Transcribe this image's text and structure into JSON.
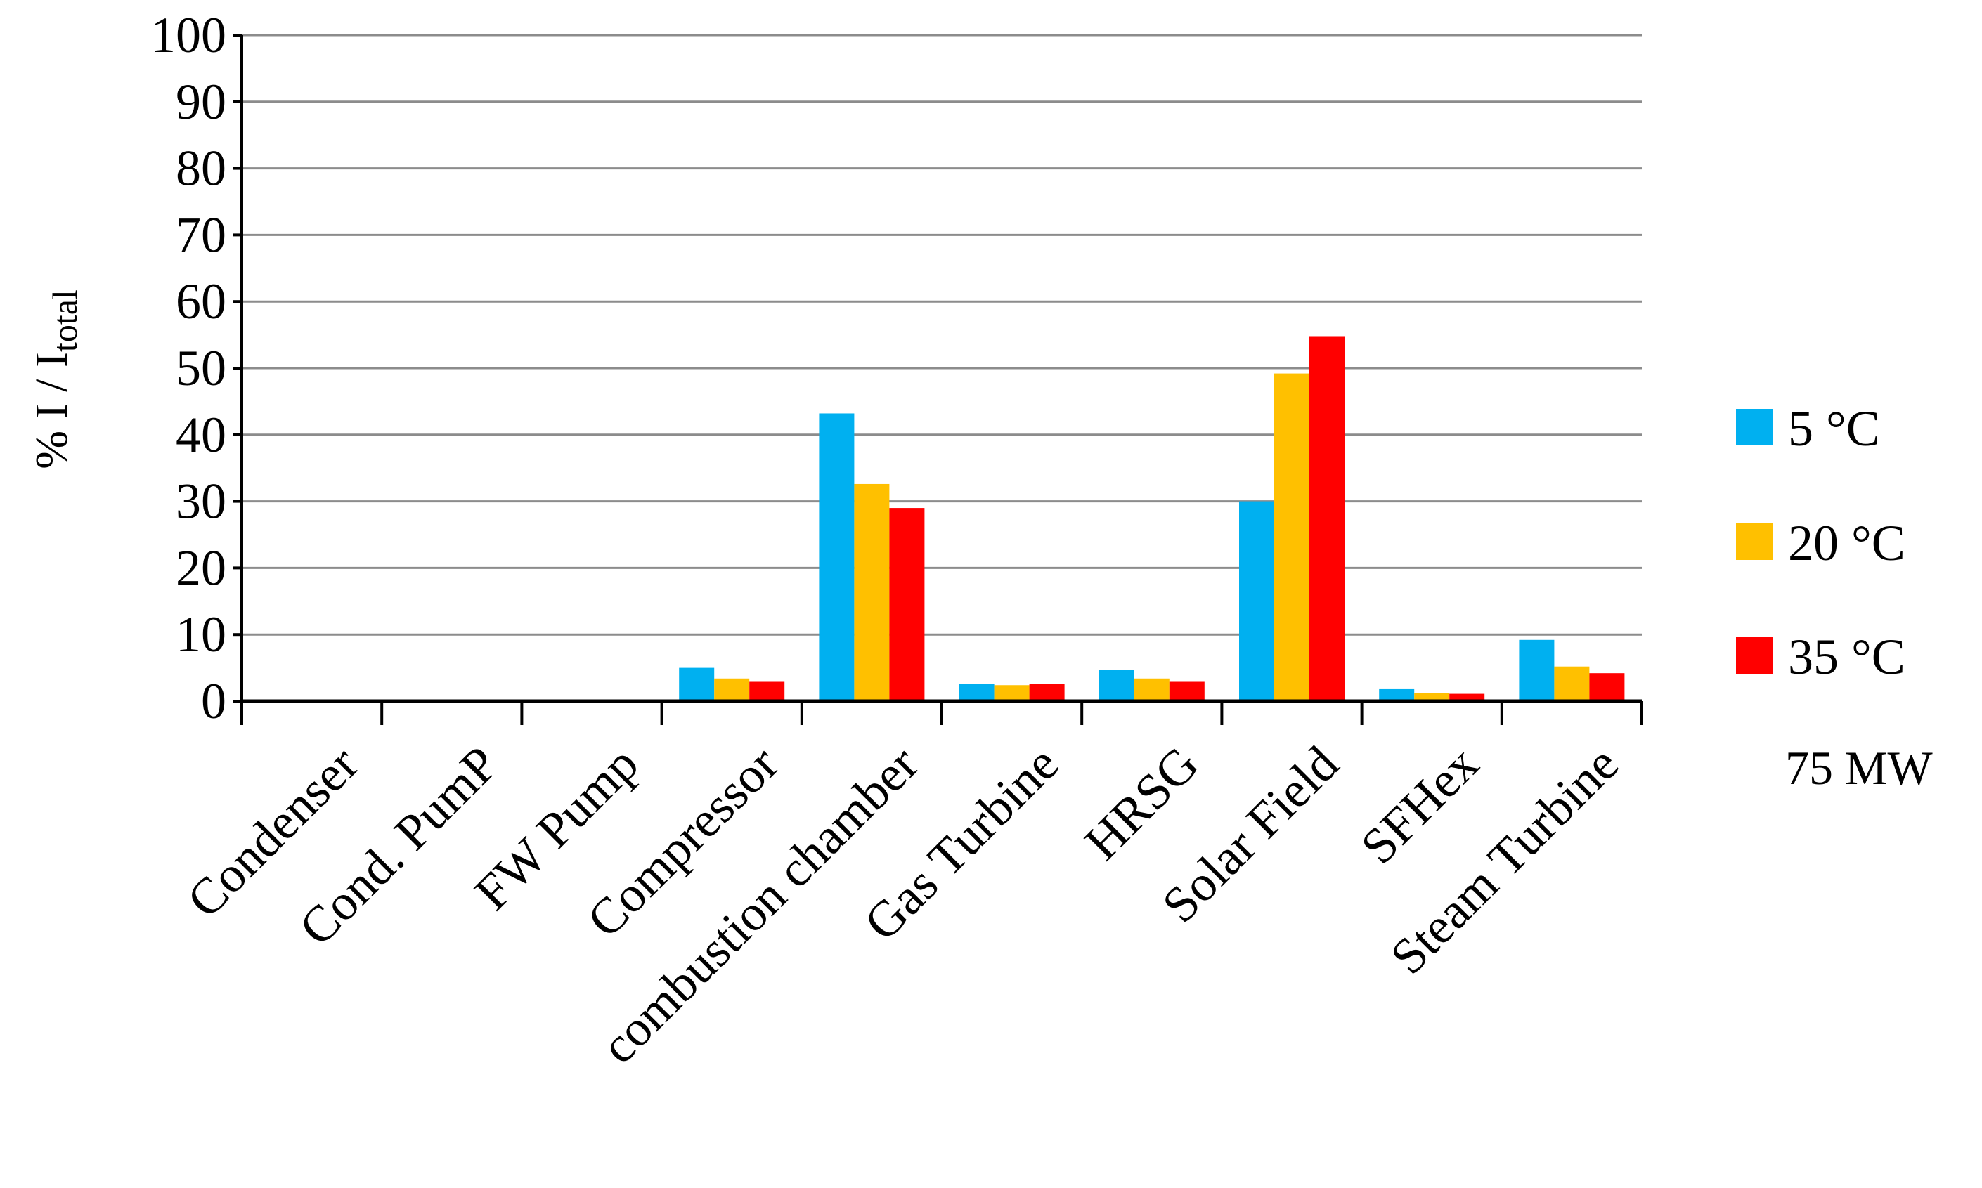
{
  "chart_data": {
    "type": "bar",
    "ylabel": {
      "main": "% I / I",
      "subscript": "total"
    },
    "ylim": [
      0,
      100
    ],
    "yticks": [
      0,
      10,
      20,
      30,
      40,
      50,
      60,
      70,
      80,
      90,
      100
    ],
    "grid": true,
    "legend_position": "right",
    "categories": [
      "Condenser",
      "Cond. PumP",
      "FW Pump",
      "Compressor",
      "combustion chamber",
      "Gas Turbine",
      "HRSG",
      "Solar Field",
      "SFHex",
      "Steam Turbine"
    ],
    "series": [
      {
        "name": "5 °C",
        "color": "#00B0F0",
        "values": [
          0,
          0,
          0,
          5.0,
          43.2,
          2.6,
          4.7,
          30.0,
          1.8,
          9.2
        ]
      },
      {
        "name": "20 °C",
        "color": "#FFC000",
        "values": [
          0,
          0,
          0,
          3.4,
          32.6,
          2.4,
          3.4,
          49.2,
          1.2,
          5.2
        ]
      },
      {
        "name": "35 °C",
        "color": "#FF0000",
        "values": [
          0,
          0,
          0,
          2.9,
          29.0,
          2.6,
          2.9,
          54.8,
          1.1,
          4.2
        ]
      }
    ],
    "annotation": "75 MW"
  }
}
